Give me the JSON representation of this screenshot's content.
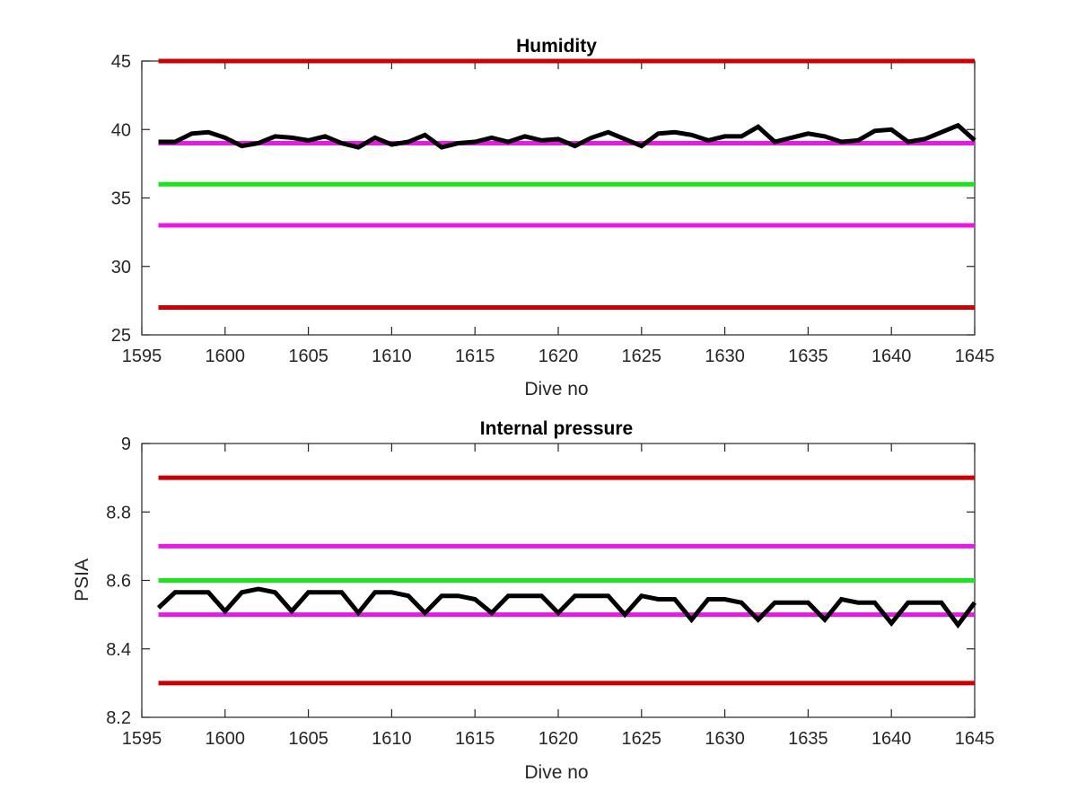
{
  "chart_data": [
    {
      "type": "line",
      "title": "Humidity",
      "xlabel": "Dive no",
      "ylabel": "",
      "xlim": [
        1595,
        1645
      ],
      "ylim": [
        25,
        45
      ],
      "xticks": [
        1595,
        1600,
        1605,
        1610,
        1615,
        1620,
        1625,
        1630,
        1635,
        1640,
        1645
      ],
      "yticks": [
        25,
        30,
        35,
        40,
        45
      ],
      "grid": false,
      "legend": "none",
      "reference_lines": [
        {
          "y": 45,
          "color": "#cc0000"
        },
        {
          "y": 39,
          "color": "#e619e6"
        },
        {
          "y": 36,
          "color": "#19e619"
        },
        {
          "y": 33,
          "color": "#e619e6"
        },
        {
          "y": 27,
          "color": "#cc0000"
        }
      ],
      "series": [
        {
          "color": "#000000",
          "x": [
            1596,
            1597,
            1598,
            1599,
            1600,
            1601,
            1602,
            1603,
            1604,
            1605,
            1606,
            1607,
            1608,
            1609,
            1610,
            1611,
            1612,
            1613,
            1614,
            1615,
            1616,
            1617,
            1618,
            1619,
            1620,
            1621,
            1622,
            1623,
            1624,
            1625,
            1626,
            1627,
            1628,
            1629,
            1630,
            1631,
            1632,
            1633,
            1634,
            1635,
            1636,
            1637,
            1638,
            1639,
            1640,
            1641,
            1642,
            1643,
            1644,
            1645
          ],
          "values": [
            39.1,
            39.1,
            39.7,
            39.8,
            39.4,
            38.8,
            39.0,
            39.5,
            39.4,
            39.2,
            39.5,
            39.0,
            38.7,
            39.4,
            38.9,
            39.1,
            39.6,
            38.7,
            39.0,
            39.1,
            39.4,
            39.1,
            39.5,
            39.2,
            39.3,
            38.8,
            39.4,
            39.8,
            39.3,
            38.8,
            39.7,
            39.8,
            39.6,
            39.2,
            39.5,
            39.5,
            40.2,
            39.1,
            39.4,
            39.7,
            39.5,
            39.1,
            39.2,
            39.9,
            40.0,
            39.1,
            39.3,
            39.8,
            40.3,
            39.2
          ]
        }
      ]
    },
    {
      "type": "line",
      "title": "Internal pressure",
      "xlabel": "Dive no",
      "ylabel": "PSIA",
      "xlim": [
        1595,
        1645
      ],
      "ylim": [
        8.2,
        9
      ],
      "xticks": [
        1595,
        1600,
        1605,
        1610,
        1615,
        1620,
        1625,
        1630,
        1635,
        1640,
        1645
      ],
      "yticks": [
        8.2,
        8.4,
        8.6,
        8.8,
        9
      ],
      "grid": false,
      "legend": "none",
      "reference_lines": [
        {
          "y": 8.9,
          "color": "#cc0000"
        },
        {
          "y": 8.7,
          "color": "#e619e6"
        },
        {
          "y": 8.6,
          "color": "#19e619"
        },
        {
          "y": 8.5,
          "color": "#e619e6"
        },
        {
          "y": 8.3,
          "color": "#cc0000"
        }
      ],
      "series": [
        {
          "color": "#000000",
          "x": [
            1596,
            1597,
            1598,
            1599,
            1600,
            1601,
            1602,
            1603,
            1604,
            1605,
            1606,
            1607,
            1608,
            1609,
            1610,
            1611,
            1612,
            1613,
            1614,
            1615,
            1616,
            1617,
            1618,
            1619,
            1620,
            1621,
            1622,
            1623,
            1624,
            1625,
            1626,
            1627,
            1628,
            1629,
            1630,
            1631,
            1632,
            1633,
            1634,
            1635,
            1636,
            1637,
            1638,
            1639,
            1640,
            1641,
            1642,
            1643,
            1644,
            1645
          ],
          "values": [
            8.52,
            8.565,
            8.565,
            8.565,
            8.51,
            8.565,
            8.575,
            8.565,
            8.51,
            8.565,
            8.565,
            8.565,
            8.505,
            8.565,
            8.565,
            8.555,
            8.505,
            8.555,
            8.555,
            8.545,
            8.505,
            8.555,
            8.555,
            8.555,
            8.505,
            8.555,
            8.555,
            8.555,
            8.5,
            8.555,
            8.545,
            8.545,
            8.485,
            8.545,
            8.545,
            8.535,
            8.485,
            8.535,
            8.535,
            8.535,
            8.485,
            8.545,
            8.535,
            8.535,
            8.475,
            8.535,
            8.535,
            8.535,
            8.47,
            8.535
          ]
        }
      ]
    }
  ]
}
